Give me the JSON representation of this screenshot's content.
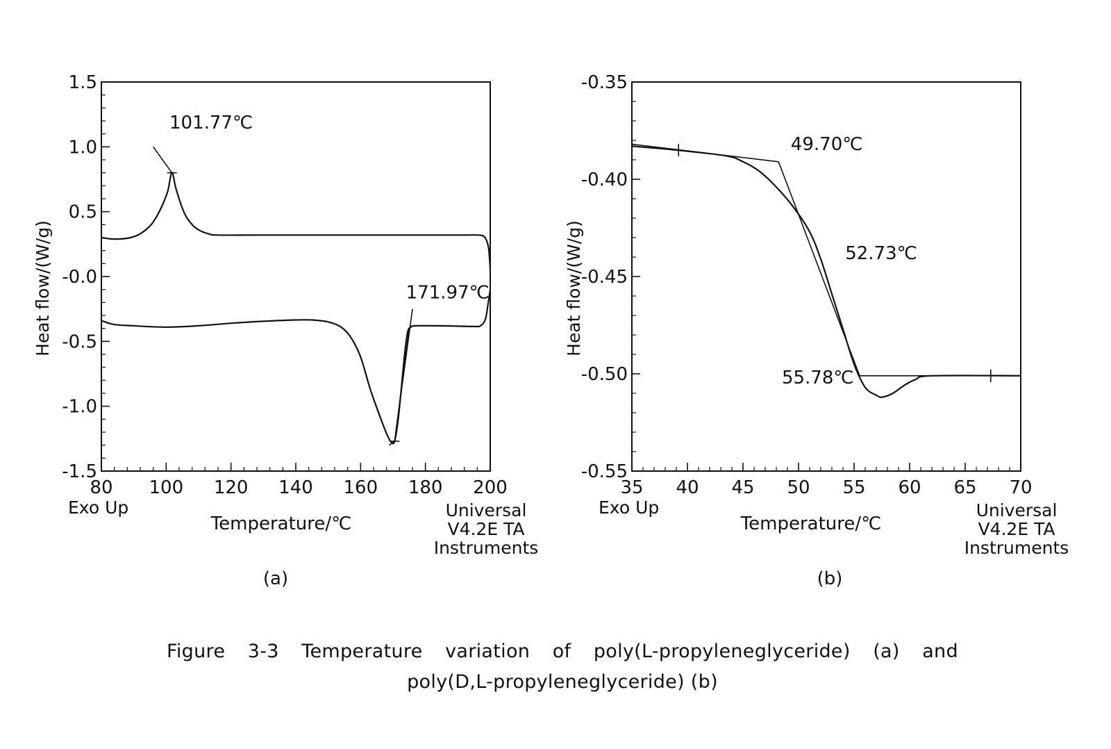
{
  "caption": {
    "line1": [
      "Figure",
      "3-3",
      "Temperature",
      "variation",
      "of",
      "poly(L-propyleneglyceride)",
      "(a)",
      "and"
    ],
    "line2": "poly(D,L-propyleneglyceride) (b)"
  },
  "chart_data": [
    {
      "type": "line",
      "panel_label": "(a)",
      "xlabel": "Temperature/℃",
      "ylabel": "Heat flow/(W/g)",
      "corner_left": "Exo Up",
      "corner_right": [
        "Universal",
        "V4.2E TA",
        "Instruments"
      ],
      "xlim": [
        80,
        200
      ],
      "ylim": [
        -1.5,
        1.5
      ],
      "xticks": [
        80,
        100,
        120,
        140,
        160,
        180,
        200
      ],
      "yticks": [
        1.5,
        1.0,
        0.5,
        0.0,
        -0.5,
        -1.0,
        -1.5
      ],
      "ytick_labels": [
        "1.5",
        "1.0",
        "0.5",
        "-0.0",
        "-0.5",
        "-1.0",
        "-1.5"
      ],
      "series": [
        {
          "points": [
            [
              80,
              0.3
            ],
            [
              83,
              0.29
            ],
            [
              86,
              0.29
            ],
            [
              89,
              0.3
            ],
            [
              92,
              0.33
            ],
            [
              95,
              0.39
            ],
            [
              97,
              0.46
            ],
            [
              99,
              0.56
            ],
            [
              100.5,
              0.66
            ],
            [
              101.77,
              0.8
            ],
            [
              103,
              0.68
            ],
            [
              104.5,
              0.56
            ],
            [
              106,
              0.47
            ],
            [
              108,
              0.4
            ],
            [
              110,
              0.36
            ],
            [
              113,
              0.33
            ],
            [
              116,
              0.32
            ],
            [
              130,
              0.32
            ],
            [
              160,
              0.32
            ],
            [
              190,
              0.32
            ],
            [
              196,
              0.32
            ],
            [
              198,
              0.31
            ],
            [
              199,
              0.27
            ],
            [
              199.6,
              0.2
            ],
            [
              200,
              0.06
            ]
          ]
        },
        {
          "points": [
            [
              80,
              -0.34
            ],
            [
              84,
              -0.37
            ],
            [
              90,
              -0.38
            ],
            [
              100,
              -0.39
            ],
            [
              110,
              -0.38
            ],
            [
              120,
              -0.36
            ],
            [
              130,
              -0.345
            ],
            [
              140,
              -0.335
            ],
            [
              145,
              -0.335
            ],
            [
              150,
              -0.35
            ],
            [
              154,
              -0.39
            ],
            [
              157,
              -0.47
            ],
            [
              160,
              -0.62
            ],
            [
              163,
              -0.87
            ],
            [
              166,
              -1.08
            ],
            [
              168,
              -1.21
            ],
            [
              169.5,
              -1.28
            ],
            [
              170.5,
              -1.27
            ],
            [
              171.5,
              -1.12
            ],
            [
              172.5,
              -0.88
            ],
            [
              173.5,
              -0.62
            ],
            [
              174.5,
              -0.43
            ],
            [
              175.5,
              -0.39
            ],
            [
              177,
              -0.38
            ],
            [
              185,
              -0.38
            ],
            [
              195,
              -0.385
            ],
            [
              197,
              -0.38
            ],
            [
              198.5,
              -0.33
            ],
            [
              199.4,
              -0.2
            ],
            [
              200,
              -0.1
            ]
          ]
        }
      ],
      "tangents": [
        {
          "points": [
            [
              170.5,
              -1.27
            ],
            [
              175,
              -0.4
            ]
          ]
        },
        {
          "points": [
            [
              170.5,
              -1.27
            ],
            [
              168.8,
              -1.3
            ]
          ]
        }
      ],
      "annotations": [
        {
          "text": "101.77℃",
          "point": [
            101.77,
            0.8
          ],
          "label_at": [
            101,
            1.14
          ],
          "leader_to": [
            96,
            1.0
          ]
        },
        {
          "text": "171.97℃",
          "point": [
            170.5,
            -1.27
          ],
          "label_at": [
            174,
            -0.17
          ],
          "leader_to": [
            176,
            -0.25
          ]
        }
      ]
    },
    {
      "type": "line",
      "panel_label": "(b)",
      "xlabel": "Temperature/℃",
      "ylabel": "Heat flow/(W/g)",
      "corner_left": "Exo Up",
      "corner_right": [
        "Universal",
        "V4.2E TA",
        "Instruments"
      ],
      "xlim": [
        35,
        70
      ],
      "ylim": [
        -0.55,
        -0.35
      ],
      "xticks": [
        35,
        40,
        45,
        50,
        55,
        60,
        65,
        70
      ],
      "yticks": [
        -0.35,
        -0.4,
        -0.45,
        -0.5,
        -0.55
      ],
      "ytick_labels": [
        "-0.35",
        "-0.40",
        "-0.45",
        "-0.50",
        "-0.55"
      ],
      "series": [
        {
          "points": [
            [
              35,
              -0.383
            ],
            [
              39,
              -0.385
            ],
            [
              43.5,
              -0.388
            ],
            [
              45,
              -0.391
            ],
            [
              46.5,
              -0.396
            ],
            [
              48,
              -0.404
            ],
            [
              49.5,
              -0.414
            ],
            [
              51,
              -0.427
            ],
            [
              52,
              -0.441
            ],
            [
              53,
              -0.459
            ],
            [
              54,
              -0.477
            ],
            [
              55,
              -0.495
            ],
            [
              56,
              -0.507
            ],
            [
              57,
              -0.511
            ],
            [
              57.5,
              -0.512
            ],
            [
              58.5,
              -0.51
            ],
            [
              59.5,
              -0.506
            ],
            [
              60.5,
              -0.503
            ],
            [
              62,
              -0.501
            ],
            [
              70,
              -0.501
            ]
          ]
        }
      ],
      "tangents": [
        {
          "points": [
            [
              35,
              -0.382
            ],
            [
              48.2,
              -0.391
            ]
          ]
        },
        {
          "points": [
            [
              48.2,
              -0.391
            ],
            [
              55.5,
              -0.501
            ]
          ]
        },
        {
          "points": [
            [
              55.5,
              -0.501
            ],
            [
              70,
              -0.501
            ]
          ]
        }
      ],
      "tick_marks": [
        [
          39.2,
          -0.385
        ],
        [
          67.3,
          -0.501
        ]
      ],
      "annotations": [
        {
          "text": "49.70℃",
          "label_at": [
            49.3,
            -0.385
          ]
        },
        {
          "text": "52.73℃",
          "label_at": [
            54.2,
            -0.441
          ]
        },
        {
          "text": "55.78℃",
          "label_at": [
            48.5,
            -0.505
          ]
        }
      ]
    }
  ]
}
